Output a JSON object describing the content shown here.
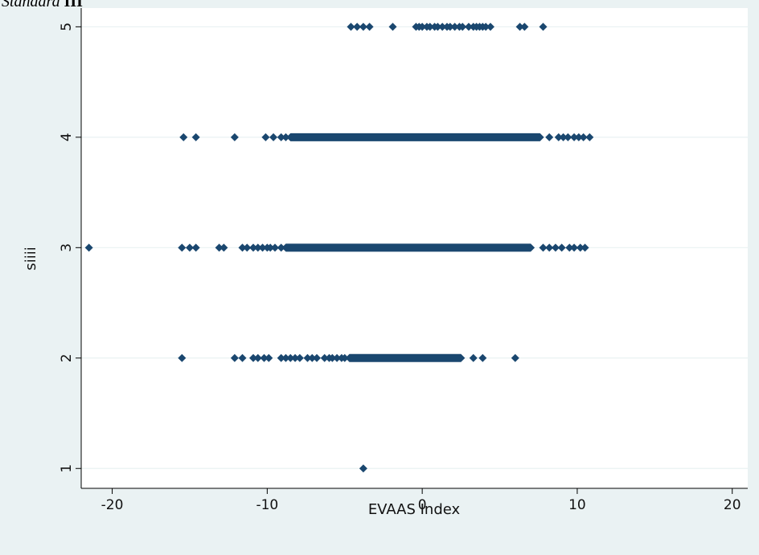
{
  "heading": {
    "italic": "Standard ",
    "bold": "III"
  },
  "colors": {
    "outer_bg": "#eaf2f3",
    "plot_bg": "#ffffff",
    "grid": "#eaf2f3",
    "marker": "#1a476f",
    "axis": "#000000"
  },
  "chart_data": {
    "type": "scatter",
    "title": "",
    "xlabel": "EVAAS Index",
    "ylabel": "siiii",
    "xlim": [
      -22,
      21
    ],
    "ylim": [
      0.82,
      5.17
    ],
    "xticks": [
      -20,
      -10,
      0,
      10,
      20
    ],
    "yticks": [
      1,
      2,
      3,
      4,
      5
    ],
    "grid": true,
    "legend": "none",
    "series": [
      {
        "y": 5,
        "x": [
          -4.6,
          -4.2,
          -3.8,
          -3.4,
          -1.9,
          -0.4,
          -0.2,
          0.0,
          0.3,
          0.5,
          0.8,
          1.0,
          1.3,
          1.6,
          1.8,
          2.1,
          2.4,
          2.6,
          3.0,
          3.3,
          3.5,
          3.7,
          3.9,
          4.1,
          4.4,
          6.3,
          6.6,
          7.8
        ],
        "ranges": []
      },
      {
        "y": 4,
        "x": [
          -15.4,
          -14.6,
          -12.1,
          -10.1,
          -9.6,
          -9.1,
          -8.8
        ],
        "ranges": [
          [
            -8.5,
            7.6
          ]
        ],
        "x2": [
          8.2,
          8.8,
          9.1,
          9.4,
          9.8,
          10.1,
          10.4,
          10.8
        ]
      },
      {
        "y": 3,
        "x": [
          -21.5,
          -15.5,
          -15.0,
          -14.6,
          -13.1,
          -12.8,
          -11.6,
          -11.3,
          -10.9,
          -10.6,
          -10.3,
          -10.0,
          -9.8,
          -9.5,
          -9.1
        ],
        "ranges": [
          [
            -8.8,
            7.0
          ]
        ],
        "x2": [
          7.8,
          8.2,
          8.6,
          9.0,
          9.5,
          9.8,
          10.2,
          10.5
        ]
      },
      {
        "y": 2,
        "x": [
          -15.5,
          -12.1,
          -11.6,
          -10.9,
          -10.6,
          -10.2,
          -9.9,
          -9.1,
          -8.8,
          -8.5,
          -8.2,
          -7.9,
          -7.4,
          -7.1,
          -6.8,
          -6.3,
          -6.0,
          -5.8,
          -5.5,
          -5.2,
          -5.0
        ],
        "ranges": [
          [
            -4.7,
            2.5
          ]
        ],
        "x2": [
          3.3,
          3.9,
          6.0
        ]
      },
      {
        "y": 1,
        "x": [
          -3.8
        ],
        "ranges": []
      }
    ]
  }
}
